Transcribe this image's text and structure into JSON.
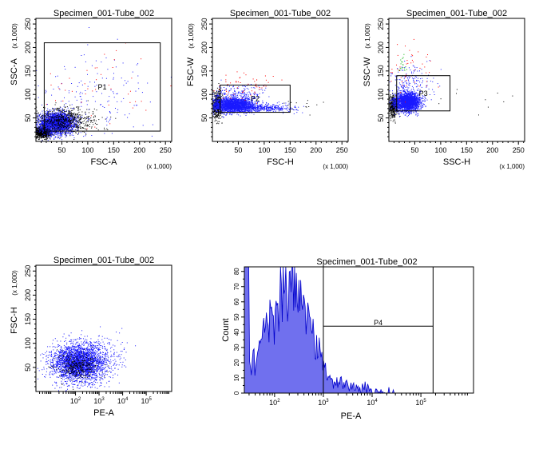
{
  "colors": {
    "gated_events": "#1a1aff",
    "ungated_events": "#000000",
    "red_events": "#ff0000",
    "green_events": "#00b000",
    "histogram_fill": "#7070ee",
    "histogram_line": "#0000cc",
    "gate_line": "#000000"
  },
  "chart_data": [
    {
      "type": "scatter",
      "title": "Specimen_001-Tube_002",
      "xlabel": "FSC-A",
      "ylabel": "SSC-A",
      "x_multiplier": "(x 1,000)",
      "y_multiplier": "(x 1,000)",
      "xlim": [
        0,
        262
      ],
      "ylim": [
        0,
        262
      ],
      "x_ticks": [
        50,
        100,
        150,
        200,
        250
      ],
      "y_ticks": [
        50,
        100,
        150,
        200,
        250
      ],
      "gate": {
        "name": "P1",
        "x": [
          16,
          240
        ],
        "y": [
          22,
          210
        ]
      },
      "populations": [
        {
          "name": "debris",
          "color_key": "ungated_events",
          "cx": 12,
          "cy": 20,
          "sx": 8,
          "sy": 6,
          "n": 900
        },
        {
          "name": "main",
          "color_key": "gated_events",
          "cx": 40,
          "cy": 40,
          "sx": 16,
          "sy": 11,
          "n": 2600
        },
        {
          "name": "main_outline",
          "color_key": "ungated_events",
          "cx": 55,
          "cy": 45,
          "sx": 30,
          "sy": 14,
          "n": 700
        },
        {
          "name": "sparse",
          "color_key": "gated_events",
          "cx": 110,
          "cy": 90,
          "sx": 60,
          "sy": 50,
          "n": 180
        },
        {
          "name": "red",
          "color_key": "red_events",
          "cx": 120,
          "cy": 110,
          "sx": 60,
          "sy": 50,
          "n": 50
        }
      ]
    },
    {
      "type": "scatter",
      "title": "Specimen_001-Tube_002",
      "xlabel": "FSC-H",
      "ylabel": "FSC-W",
      "x_multiplier": "(x 1,000)",
      "y_multiplier": "(x 1,000)",
      "xlim": [
        0,
        262
      ],
      "ylim": [
        0,
        262
      ],
      "x_ticks": [
        50,
        100,
        150,
        200,
        250
      ],
      "y_ticks": [
        50,
        100,
        150,
        200,
        250
      ],
      "gate": {
        "name": "P2",
        "x": [
          15,
          150
        ],
        "y": [
          62,
          120
        ]
      },
      "populations": [
        {
          "name": "debris",
          "color_key": "ungated_events",
          "cx": 8,
          "cy": 78,
          "sx": 5,
          "sy": 14,
          "n": 500
        },
        {
          "name": "main",
          "color_key": "gated_events",
          "cx": 40,
          "cy": 78,
          "sx": 20,
          "sy": 8,
          "n": 2200
        },
        {
          "name": "tail",
          "color_key": "gated_events",
          "cx": 100,
          "cy": 72,
          "sx": 30,
          "sy": 4,
          "n": 400
        },
        {
          "name": "upper",
          "color_key": "gated_events",
          "cx": 50,
          "cy": 105,
          "sx": 25,
          "sy": 10,
          "n": 150
        },
        {
          "name": "red",
          "color_key": "red_events",
          "cx": 60,
          "cy": 120,
          "sx": 30,
          "sy": 15,
          "n": 60
        },
        {
          "name": "black_tail",
          "color_key": "ungated_events",
          "cx": 190,
          "cy": 80,
          "sx": 30,
          "sy": 8,
          "n": 14
        }
      ]
    },
    {
      "type": "scatter",
      "title": "Specimen_001-Tube_002",
      "xlabel": "SSC-H",
      "ylabel": "SSC-W",
      "x_multiplier": "(x 1,000)",
      "y_multiplier": "(x 1,000)",
      "xlim": [
        0,
        262
      ],
      "ylim": [
        0,
        262
      ],
      "x_ticks": [
        50,
        100,
        150,
        200,
        250
      ],
      "y_ticks": [
        50,
        100,
        150,
        200,
        250
      ],
      "gate": {
        "name": "P3",
        "x": [
          15,
          118
        ],
        "y": [
          65,
          140
        ]
      },
      "populations": [
        {
          "name": "debris",
          "color_key": "ungated_events",
          "cx": 8,
          "cy": 75,
          "sx": 5,
          "sy": 12,
          "n": 450
        },
        {
          "name": "main",
          "color_key": "gated_events",
          "cx": 35,
          "cy": 85,
          "sx": 12,
          "sy": 10,
          "n": 2200
        },
        {
          "name": "upper",
          "color_key": "gated_events",
          "cx": 40,
          "cy": 125,
          "sx": 20,
          "sy": 20,
          "n": 180
        },
        {
          "name": "red",
          "color_key": "red_events",
          "cx": 35,
          "cy": 150,
          "sx": 25,
          "sy": 30,
          "n": 50
        },
        {
          "name": "green",
          "color_key": "green_events",
          "cx": 25,
          "cy": 165,
          "sx": 6,
          "sy": 12,
          "n": 20
        },
        {
          "name": "black_tail",
          "color_key": "ungated_events",
          "cx": 160,
          "cy": 90,
          "sx": 45,
          "sy": 15,
          "n": 10
        }
      ]
    },
    {
      "type": "scatter",
      "title": "Specimen_001-Tube_002",
      "xlabel": "PE-A",
      "ylabel": "FSC-H",
      "x_scale": "log",
      "y_multiplier": "(x 1,000)",
      "xlim": [
        2.1,
        1200000.0
      ],
      "ylim": [
        0,
        262
      ],
      "x_ticks": [
        "10^2",
        "10^3",
        "10^4",
        "10^5"
      ],
      "y_ticks": [
        50,
        100,
        150,
        200,
        250
      ],
      "populations": [
        {
          "name": "main",
          "color_key": "gated_events",
          "logx_center": 2.1,
          "logx_sd": 0.55,
          "cy": 60,
          "sy": 20,
          "n": 3000
        },
        {
          "name": "dense",
          "color_key": "ungated_events",
          "logx_center": 2.1,
          "logx_sd": 0.45,
          "cy": 55,
          "sy": 14,
          "n": 350
        },
        {
          "name": "spread",
          "color_key": "gated_events",
          "logx_center": 3.3,
          "logx_sd": 0.4,
          "cy": 70,
          "sy": 25,
          "n": 160
        }
      ]
    },
    {
      "type": "histogram",
      "title": "Specimen_001-Tube_002",
      "xlabel": "PE-A",
      "ylabel": "Count",
      "x_scale": "log",
      "xlim": [
        0,
        1200000.0
      ],
      "ylim": [
        0,
        83
      ],
      "x_ticks": [
        "10^2",
        "10^3",
        "10^4",
        "10^5"
      ],
      "y_ticks": [
        0,
        10,
        20,
        30,
        40,
        50,
        60,
        70,
        80
      ],
      "gate": {
        "name": "P4",
        "x_log": [
          3.0,
          5.25
        ]
      },
      "profile_log10x": [
        1.45,
        1.6,
        1.8,
        2.0,
        2.2,
        2.4,
        2.55,
        2.7,
        2.85,
        3.0,
        3.1,
        3.2,
        3.4,
        3.6,
        3.8,
        4.0,
        4.1,
        4.2,
        4.5
      ],
      "profile_count": [
        10,
        28,
        40,
        55,
        68,
        70,
        62,
        52,
        32,
        16,
        9,
        8,
        6,
        5,
        3,
        1,
        0.6,
        0.3,
        0
      ]
    }
  ]
}
